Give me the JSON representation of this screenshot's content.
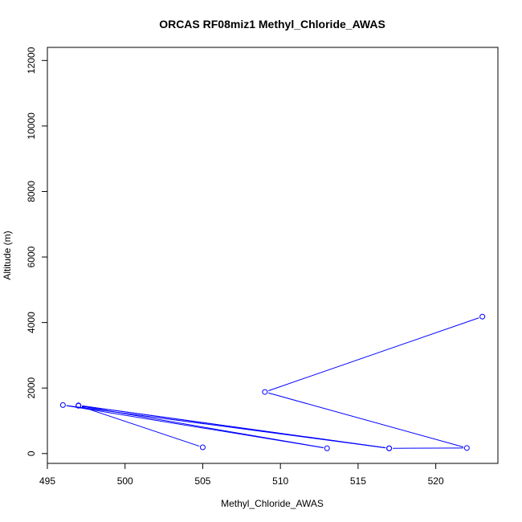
{
  "chart_data": {
    "type": "line",
    "title": "ORCAS RF08miz1 Methyl_Chloride_AWAS",
    "xlabel": "Methyl_Chloride_AWAS",
    "ylabel": "Altitude (m)",
    "xlim": [
      495,
      524
    ],
    "ylim": [
      -300,
      12400
    ],
    "x_ticks": [
      495,
      500,
      505,
      510,
      515,
      520
    ],
    "y_ticks": [
      0,
      2000,
      4000,
      6000,
      8000,
      10000,
      12000
    ],
    "grid": false,
    "legend": "none",
    "series": [
      {
        "color": "#0000ff",
        "marker": "open-circle",
        "points": [
          {
            "x": 523,
            "y": 4180
          },
          {
            "x": 509,
            "y": 1880
          },
          {
            "x": 522,
            "y": 170
          },
          {
            "x": 517,
            "y": 160
          },
          {
            "x": 497,
            "y": 1470
          },
          {
            "x": 517,
            "y": 160
          },
          {
            "x": 496,
            "y": 1480
          },
          {
            "x": 513,
            "y": 160
          },
          {
            "x": 497,
            "y": 1460
          },
          {
            "x": 505,
            "y": 190
          }
        ]
      }
    ]
  }
}
